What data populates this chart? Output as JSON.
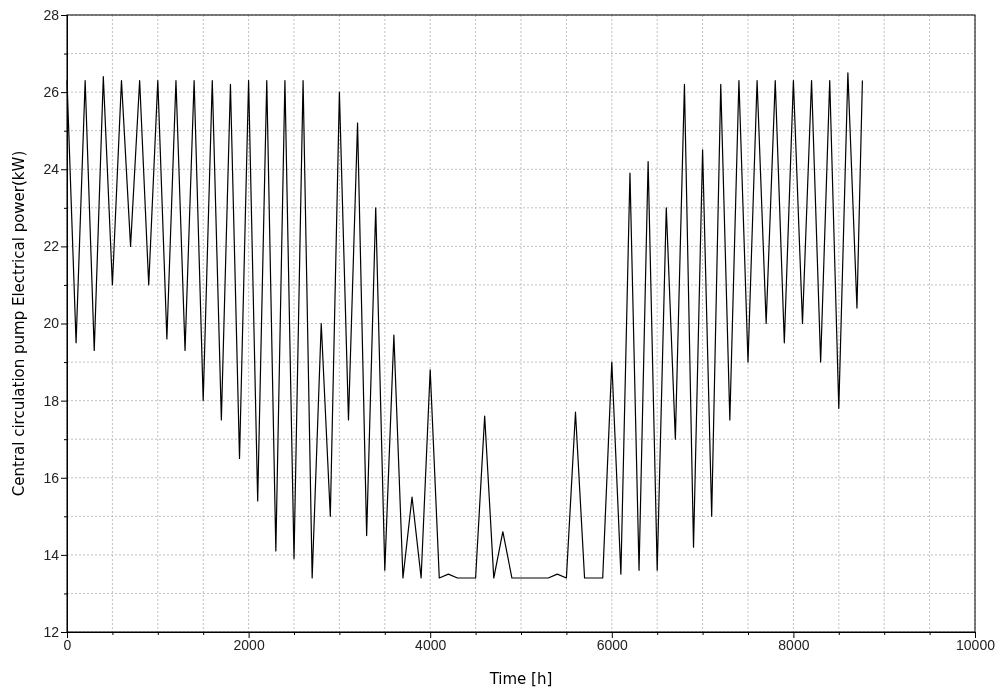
{
  "chart_data": {
    "type": "line",
    "xlabel": "Time [h]",
    "ylabel": "Central circulation pump Electrical power(kW)",
    "x": [
      0,
      100,
      200,
      300,
      400,
      500,
      600,
      700,
      800,
      900,
      1000,
      1100,
      1200,
      1300,
      1400,
      1500,
      1600,
      1700,
      1800,
      1900,
      2000,
      2100,
      2200,
      2300,
      2400,
      2500,
      2600,
      2700,
      2800,
      2900,
      3000,
      3100,
      3200,
      3300,
      3400,
      3500,
      3600,
      3700,
      3800,
      3900,
      4000,
      4100,
      4200,
      4300,
      4400,
      4500,
      4600,
      4700,
      4800,
      4900,
      5000,
      5100,
      5200,
      5300,
      5400,
      5500,
      5600,
      5700,
      5800,
      5900,
      6000,
      6100,
      6200,
      6300,
      6400,
      6500,
      6600,
      6700,
      6800,
      6900,
      7000,
      7100,
      7200,
      7300,
      7400,
      7500,
      7600,
      7700,
      7800,
      7900,
      8000,
      8100,
      8200,
      8300,
      8400,
      8500,
      8600,
      8700,
      8760
    ],
    "series": [
      {
        "color": "#000000",
        "values": [
          26.3,
          19.5,
          26.3,
          19.3,
          26.4,
          21,
          26.3,
          22,
          26.3,
          21,
          26.3,
          19.6,
          26.3,
          19.3,
          26.3,
          18,
          26.3,
          17.5,
          26.2,
          16.5,
          26.3,
          15.4,
          26.3,
          14.1,
          26.3,
          13.9,
          26.3,
          13.4,
          20,
          15,
          26,
          17.5,
          25.2,
          14.5,
          23,
          13.6,
          19.7,
          13.4,
          15.5,
          13.4,
          18.8,
          13.4,
          13.5,
          13.4,
          13.4,
          13.4,
          17.6,
          13.4,
          14.6,
          13.4,
          13.4,
          13.4,
          13.4,
          13.4,
          13.5,
          13.4,
          17.7,
          13.4,
          13.4,
          13.4,
          19,
          13.5,
          23.9,
          13.6,
          24.2,
          13.6,
          23,
          17,
          26.2,
          14.2,
          24.5,
          15,
          26.2,
          17.5,
          26.3,
          19,
          26.3,
          20,
          26.3,
          19.5,
          26.3,
          20,
          26.3,
          19,
          26.3,
          17.8,
          26.5,
          20.4,
          26.3
        ]
      }
    ],
    "xlim": [
      0,
      10000
    ],
    "xticks": [
      0,
      {
        "value": 500,
        "label": null
      },
      {
        "value": 1000,
        "label": null
      },
      {
        "value": 1500,
        "label": null
      },
      2000,
      {
        "value": 2500,
        "label": null
      },
      {
        "value": 3000,
        "label": null
      },
      {
        "value": 3500,
        "label": null
      },
      4000,
      {
        "value": 4500,
        "label": null
      },
      {
        "value": 5000,
        "label": null
      },
      {
        "value": 5500,
        "label": null
      },
      6000,
      {
        "value": 6500,
        "label": null
      },
      {
        "value": 7000,
        "label": null
      },
      {
        "value": 7500,
        "label": null
      },
      8000,
      {
        "value": 8500,
        "label": null
      },
      {
        "value": 9000,
        "label": null
      },
      {
        "value": 9500,
        "label": null
      },
      10000
    ],
    "ylim": [
      12,
      28
    ],
    "yticks": [
      12,
      {
        "value": 13,
        "label": null
      },
      14,
      {
        "value": 15,
        "label": null
      },
      16,
      {
        "value": 17,
        "label": null
      },
      18,
      {
        "value": 19,
        "label": null
      },
      20,
      {
        "value": 21,
        "label": null
      },
      22,
      {
        "value": 23,
        "label": null
      },
      24,
      {
        "value": 25,
        "label": null
      },
      26,
      {
        "value": 27,
        "label": null
      },
      28
    ],
    "grid": true,
    "line_style": "solid",
    "marker": "none"
  }
}
